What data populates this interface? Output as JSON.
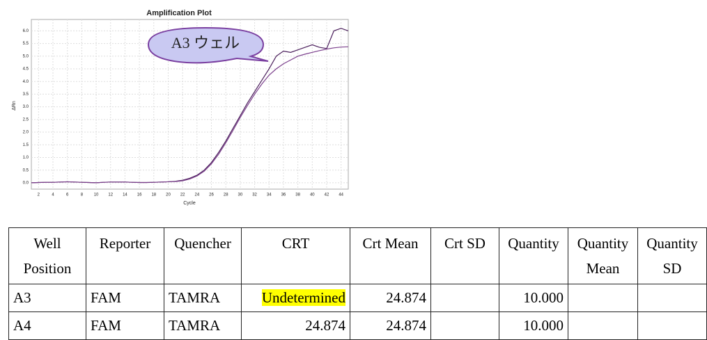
{
  "chart_data": {
    "type": "line",
    "title": "Amplification Plot",
    "x_label": "Cycle",
    "y_label": "ΔRn",
    "annotation": "A3 ウェル",
    "x": [
      1,
      2,
      3,
      4,
      5,
      6,
      7,
      8,
      9,
      10,
      11,
      12,
      13,
      14,
      15,
      16,
      17,
      18,
      19,
      20,
      21,
      22,
      23,
      24,
      25,
      26,
      27,
      28,
      29,
      30,
      31,
      32,
      33,
      34,
      35,
      36,
      37,
      38,
      39,
      40,
      41,
      42,
      43,
      44,
      45
    ],
    "series": [
      {
        "color": "#4b1f5c",
        "values": [
          0.0,
          0.01,
          0.02,
          0.02,
          0.03,
          0.04,
          0.03,
          0.02,
          0.01,
          0.0,
          0.02,
          0.03,
          0.03,
          0.03,
          0.02,
          0.01,
          0.01,
          0.02,
          0.03,
          0.04,
          0.06,
          0.1,
          0.18,
          0.3,
          0.5,
          0.8,
          1.2,
          1.65,
          2.15,
          2.65,
          3.15,
          3.6,
          4.05,
          4.5,
          5.0,
          5.2,
          5.15,
          5.25,
          5.35,
          5.45,
          5.35,
          5.3,
          6.0,
          6.1,
          6.0
        ]
      },
      {
        "color": "#7b3f8c",
        "values": [
          0.0,
          0.01,
          0.02,
          0.02,
          0.03,
          0.04,
          0.03,
          0.02,
          0.01,
          0.0,
          0.02,
          0.03,
          0.03,
          0.03,
          0.02,
          0.01,
          0.01,
          0.02,
          0.03,
          0.04,
          0.05,
          0.08,
          0.15,
          0.27,
          0.46,
          0.75,
          1.13,
          1.58,
          2.07,
          2.58,
          3.05,
          3.5,
          3.9,
          4.25,
          4.5,
          4.7,
          4.85,
          5.0,
          5.08,
          5.15,
          5.22,
          5.28,
          5.33,
          5.36,
          5.37
        ]
      }
    ],
    "xlim": [
      1,
      45
    ],
    "ylim": [
      -0.25,
      6.45
    ],
    "xticks": [
      2,
      4,
      6,
      8,
      10,
      12,
      14,
      16,
      18,
      20,
      22,
      24,
      26,
      28,
      30,
      32,
      34,
      36,
      38,
      40,
      42,
      44
    ],
    "yticks": [
      {
        "value": 0,
        "label": "0.0"
      },
      0.5,
      {
        "value": 1,
        "label": "1.0"
      },
      1.5,
      {
        "value": 2,
        "label": "2.0"
      },
      2.5,
      {
        "value": 3,
        "label": "3.0"
      },
      3.5,
      {
        "value": 4,
        "label": "4.0"
      },
      4.5,
      {
        "value": 5,
        "label": "5.0"
      },
      5.5,
      {
        "value": 6,
        "label": "6.0"
      }
    ],
    "grid": true
  },
  "table": {
    "columns": [
      "Well Position",
      "Reporter",
      "Quencher",
      "CRT",
      "Crt Mean",
      "Crt SD",
      "Quantity",
      "Quantity Mean",
      "Quantity SD"
    ],
    "rows": [
      [
        "A3",
        "FAM",
        "TAMRA",
        "Undetermined",
        "24.874",
        "",
        "10.000",
        "",
        ""
      ],
      [
        "A4",
        "FAM",
        "TAMRA",
        "24.874",
        "24.874",
        "",
        "10.000",
        "",
        ""
      ]
    ]
  }
}
